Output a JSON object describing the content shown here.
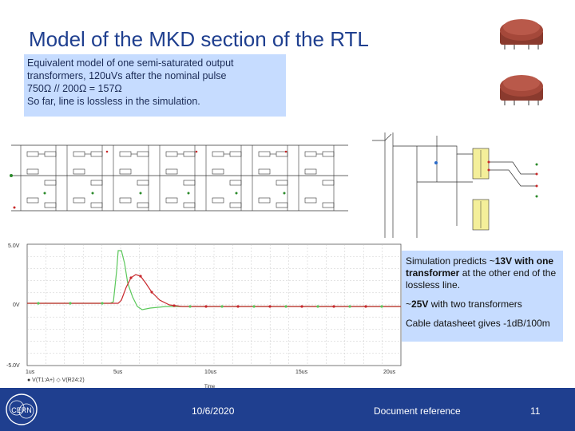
{
  "slide": {
    "title": "Model of the MKD section of the RTL",
    "note_lines": [
      "Equivalent model of one semi-saturated output",
      "transformers, 120uVs after the nominal pulse",
      "750Ω // 200Ω = 157Ω",
      "So far, line is lossless in the simulation."
    ],
    "callout": {
      "p1_pre": "Simulation predicts ~",
      "p1_bold": "13V with one transformer",
      "p1_post": " at the other end of the lossless line.",
      "p2_pre": "~",
      "p2_bold": "25V",
      "p2_post": " with two transformers",
      "p3": "Cable datasheet gives -1dB/100m"
    },
    "plot": {
      "y_labels": [
        "5.0V",
        "0V",
        "-5.0V"
      ],
      "x_labels": [
        "1us",
        "5us",
        "10us",
        "15us",
        "20us"
      ],
      "x_title": "Time",
      "legend": "● V(T1:A+)  ◇ V(R24:2)"
    },
    "footer": {
      "logo": "CERN",
      "date": "10/6/2020",
      "reference": "Document reference",
      "page": "11"
    }
  },
  "colors": {
    "title": "#1f3f8f",
    "note_bg": "#c6dcff",
    "footer_bg": "#1f3f8f",
    "trace_red": "#c8282d",
    "trace_green": "#5bc85b",
    "component": "#a5483a"
  }
}
